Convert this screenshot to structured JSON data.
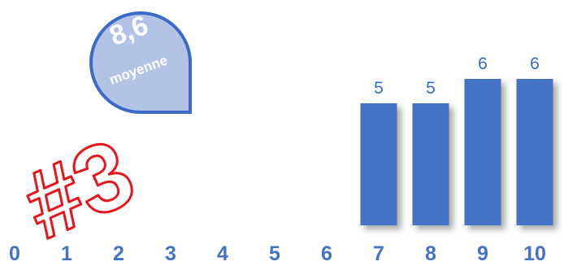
{
  "chart_data": {
    "type": "bar",
    "categories": [
      "0",
      "1",
      "2",
      "3",
      "4",
      "5",
      "6",
      "7",
      "8",
      "9",
      "10"
    ],
    "values": [
      0,
      0,
      0,
      0,
      0,
      0,
      0,
      5,
      5,
      6,
      6
    ],
    "data_labels": [
      "",
      "",
      "",
      "",
      "",
      "",
      "",
      "5",
      "5",
      "6",
      "6"
    ],
    "ylim": [
      0,
      6.5
    ],
    "grid": false,
    "title": "",
    "xlabel": "",
    "ylabel": ""
  },
  "badge": {
    "value": "8,6",
    "label": "moyenne"
  },
  "rank": {
    "text": "#3"
  },
  "colors": {
    "bar": "#4472c4",
    "badge_fill": "#b2c3e6",
    "badge_border": "#3c6ac8",
    "tick_label": "#4472c4",
    "data_label": "#3a68c0",
    "rank_stroke": "#e8141c"
  }
}
